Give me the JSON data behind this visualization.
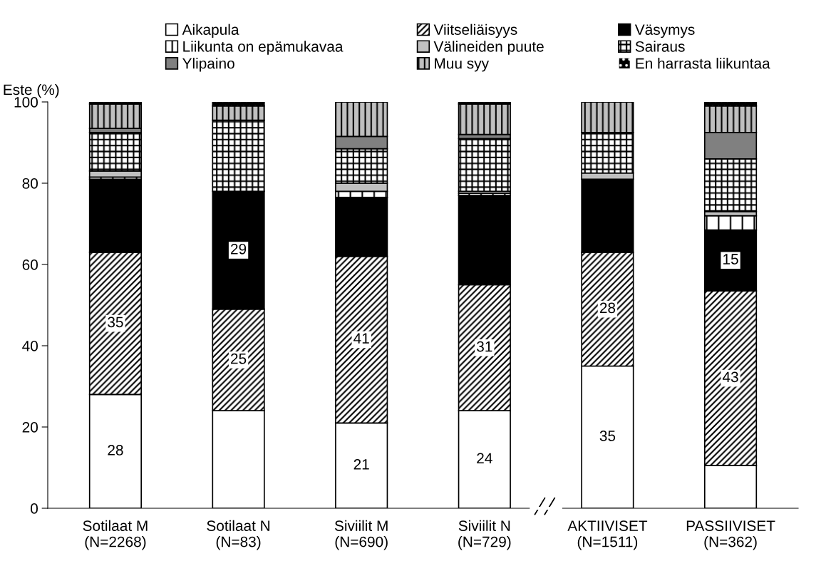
{
  "chart_data": {
    "type": "bar",
    "stacked": true,
    "ylabel": "Este (%)",
    "ylim": [
      0,
      100
    ],
    "yticks": [
      0,
      20,
      40,
      60,
      80,
      100
    ],
    "grid": false,
    "legend": "top",
    "categories": [
      "Sotilaat M\n(N=2268)",
      "Sotilaat N\n(N=83)",
      "Siviilit M\n(N=690)",
      "Siviilit N\n(N=729)",
      "AKTIIVISET\n(N=1511)",
      "PASSIIVISET\n(N=362)"
    ],
    "series": [
      {
        "name": "Aikapula",
        "color": "#ffffff",
        "values": [
          28,
          24,
          21,
          24,
          35,
          10.5
        ],
        "value_labels": [
          "28",
          null,
          "21",
          "24",
          "35",
          null
        ]
      },
      {
        "name": "Viitseliäisyys",
        "color": "#ffffff",
        "values": [
          35,
          25,
          41,
          31,
          28,
          43
        ],
        "value_labels": [
          "35",
          "25",
          "41",
          "31",
          "28",
          "43"
        ]
      },
      {
        "name": "Väsymys",
        "color": "#000000",
        "values": [
          18,
          29,
          14.5,
          22,
          18,
          15
        ],
        "value_labels": [
          null,
          "29",
          null,
          null,
          null,
          "15"
        ]
      },
      {
        "name": "Liikunta on epämukavaa",
        "color": "#ffffff",
        "values": [
          0.5,
          0,
          1.5,
          0.5,
          0,
          3.5
        ]
      },
      {
        "name": "Välineiden puute",
        "color": "#c0c0c0",
        "values": [
          1.5,
          0,
          2,
          0.5,
          1.5,
          1
        ]
      },
      {
        "name": "Sairaus",
        "color": "#ffffff",
        "values": [
          9.5,
          17.5,
          8.5,
          13,
          10,
          13
        ]
      },
      {
        "name": "Ylipaino",
        "color": "#808080",
        "values": [
          1,
          0,
          3,
          1,
          0,
          6.5
        ]
      },
      {
        "name": "Muu syy",
        "color": "#c0c0c0",
        "values": [
          6,
          3.5,
          8.5,
          7.5,
          7.5,
          6.5
        ]
      },
      {
        "name": "En harrasta liikuntaa",
        "color": "#000000",
        "values": [
          0.5,
          1,
          0,
          0.5,
          0,
          1
        ]
      }
    ]
  }
}
